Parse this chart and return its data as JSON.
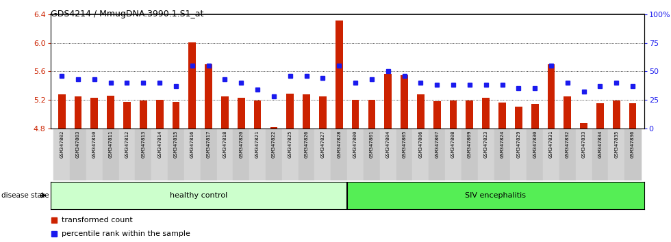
{
  "title": "GDS4214 / MmugDNA.3990.1.S1_at",
  "samples": [
    "GSM347802",
    "GSM347803",
    "GSM347810",
    "GSM347811",
    "GSM347812",
    "GSM347813",
    "GSM347814",
    "GSM347815",
    "GSM347816",
    "GSM347817",
    "GSM347818",
    "GSM347820",
    "GSM347821",
    "GSM347822",
    "GSM347825",
    "GSM347826",
    "GSM347827",
    "GSM347828",
    "GSM347800",
    "GSM347801",
    "GSM347804",
    "GSM347805",
    "GSM347806",
    "GSM347807",
    "GSM347808",
    "GSM347809",
    "GSM347823",
    "GSM347824",
    "GSM347829",
    "GSM347830",
    "GSM347831",
    "GSM347832",
    "GSM347833",
    "GSM347834",
    "GSM347835",
    "GSM347836"
  ],
  "bar_values": [
    5.28,
    5.25,
    5.23,
    5.26,
    5.17,
    5.19,
    5.2,
    5.17,
    6.01,
    5.7,
    5.25,
    5.23,
    5.19,
    4.82,
    5.29,
    5.28,
    5.25,
    6.32,
    5.2,
    5.2,
    5.57,
    5.55,
    5.28,
    5.18,
    5.19,
    5.19,
    5.23,
    5.16,
    5.1,
    5.14,
    5.7,
    5.25,
    4.87,
    5.15,
    5.19,
    5.15
  ],
  "percentile_values": [
    46,
    43,
    43,
    40,
    40,
    40,
    40,
    37,
    55,
    55,
    43,
    40,
    34,
    28,
    46,
    46,
    44,
    55,
    40,
    43,
    50,
    46,
    40,
    38,
    38,
    38,
    38,
    38,
    35,
    35,
    55,
    40,
    32,
    37,
    40,
    37
  ],
  "ylim_left": [
    4.8,
    6.4
  ],
  "ylim_right": [
    0,
    100
  ],
  "yticks_left": [
    4.8,
    5.2,
    5.6,
    6.0,
    6.4
  ],
  "yticks_right": [
    0,
    25,
    50,
    75,
    100
  ],
  "ytick_labels_left": [
    "4.8",
    "5.2",
    "5.6",
    "6.0",
    "6.4"
  ],
  "ytick_labels_right": [
    "0",
    "25",
    "50",
    "75",
    "100%"
  ],
  "bar_color": "#cc2200",
  "dot_color": "#1a1aee",
  "healthy_label": "healthy control",
  "siv_label": "SIV encephalitis",
  "disease_state_label": "disease state",
  "healthy_count": 18,
  "legend_bar": "transformed count",
  "legend_dot": "percentile rank within the sample",
  "healthy_bg": "#ccffcc",
  "siv_bg": "#55ee55",
  "bg_plot": "#ffffff",
  "tick_label_bg": "#d0d0d0"
}
